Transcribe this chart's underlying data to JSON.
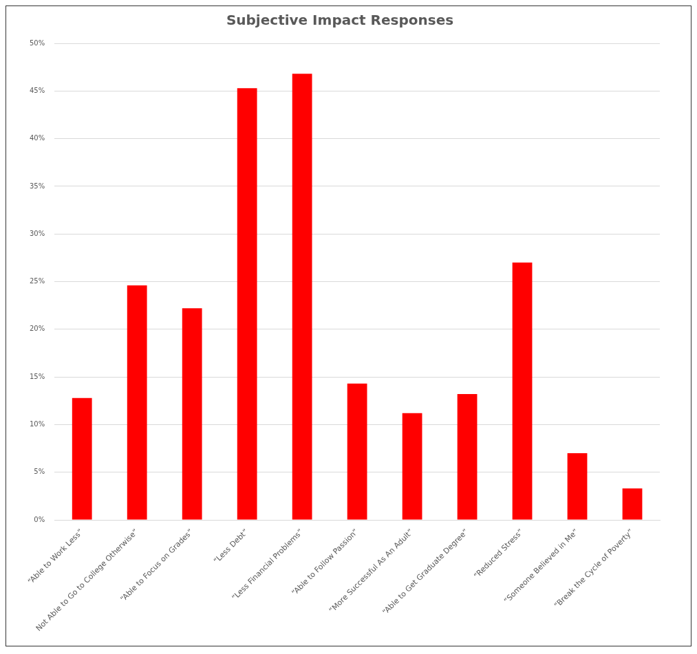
{
  "chart_data": {
    "type": "bar",
    "title": "Subjective Impact Responses",
    "categories": [
      "“Able to Work Less”",
      "Not Able to Go to College Otherwise”",
      "“Able to Focus on Grades”",
      "“Less Debt”",
      "“Less Financial Problems”",
      "“Able to Follow Passion”",
      "“More Successful As An Adult”",
      "“Able to Get Graduate Degree”",
      "“Reduced Stress”",
      "“Someone Believed in Me”",
      "“Break the Cycle of Poverty”"
    ],
    "values": [
      12.8,
      24.6,
      22.2,
      45.3,
      46.8,
      14.3,
      11.2,
      13.2,
      27.0,
      7.0,
      3.3
    ],
    "color": "#ff0000",
    "ylim": [
      0,
      50
    ],
    "yticks": [
      {
        "value": 0,
        "label": "0%"
      },
      {
        "value": 5,
        "label": "5%"
      },
      {
        "value": 10,
        "label": "10%"
      },
      {
        "value": 15,
        "label": "15%"
      },
      {
        "value": 20,
        "label": "20%"
      },
      {
        "value": 25,
        "label": "25%"
      },
      {
        "value": 30,
        "label": "30%"
      },
      {
        "value": 35,
        "label": "35%"
      },
      {
        "value": 40,
        "label": "40%"
      },
      {
        "value": 45,
        "label": "45%"
      },
      {
        "value": 50,
        "label": "50%"
      }
    ],
    "grid": "y"
  }
}
